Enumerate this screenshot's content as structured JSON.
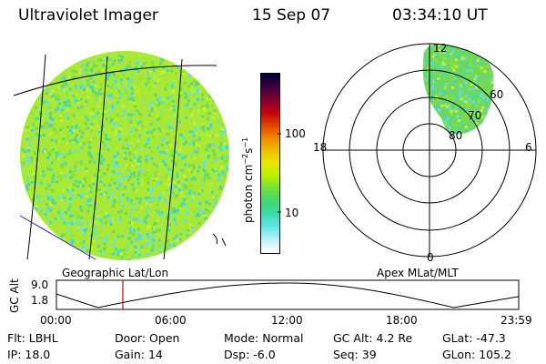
{
  "header": {
    "instrument": "Ultraviolet Imager",
    "date": "15 Sep 07",
    "time": "03:34:10 UT"
  },
  "left_panel": {
    "caption": "Geographic Lat/Lon"
  },
  "colorbar": {
    "label_main": "photon cm",
    "label_exp1": "−2",
    "label_mid": "s",
    "label_exp2": "−1",
    "ticks": [
      "100",
      "10"
    ],
    "colors": [
      "#000030",
      "#3a0040",
      "#800030",
      "#c00010",
      "#e04000",
      "#f08800",
      "#f0c000",
      "#e8e800",
      "#b8f000",
      "#70e040",
      "#40d870",
      "#40d8b0",
      "#60e8e8",
      "#c0f0f8",
      "#ffffff"
    ]
  },
  "polar_plot": {
    "caption": "Apex MLat/MLT",
    "mlt_labels": {
      "top": "12",
      "right": "6",
      "bottom": "0",
      "left": "18"
    },
    "lat_labels": [
      "60",
      "70",
      "80"
    ]
  },
  "alt_plot": {
    "axis_label": "GC Alt",
    "y_ticks": [
      "9.0",
      "1.8"
    ],
    "x_ticks": [
      "00:00",
      "06:00",
      "12:00",
      "18:00",
      "23:59"
    ],
    "marker_color": "#d00000"
  },
  "status": {
    "filter_label": "Flt:",
    "filter_value": "LBHL",
    "door_label": "Door:",
    "door_value": "Open",
    "mode_label": "Mode:",
    "mode_value": "Normal",
    "gcalt_label": "GC Alt:",
    "gcalt_value": "4.2 Re",
    "glat_label": "GLat:",
    "glat_value": "-47.3",
    "ip_label": "IP:",
    "ip_value": "18.0",
    "gain_label": "Gain:",
    "gain_value": "14",
    "dsp_label": "Dsp:",
    "dsp_value": "-6.0",
    "seq_label": "Seq:",
    "seq_value": "39",
    "glon_label": "GLon:",
    "glon_value": "105.2"
  },
  "palette": {
    "disk_base": "#a8e838",
    "disk_dots": [
      "#90e030",
      "#70d850",
      "#50d890",
      "#40d8c0",
      "#60e0e0",
      "#c8f030"
    ],
    "coast": "#2020c0"
  }
}
